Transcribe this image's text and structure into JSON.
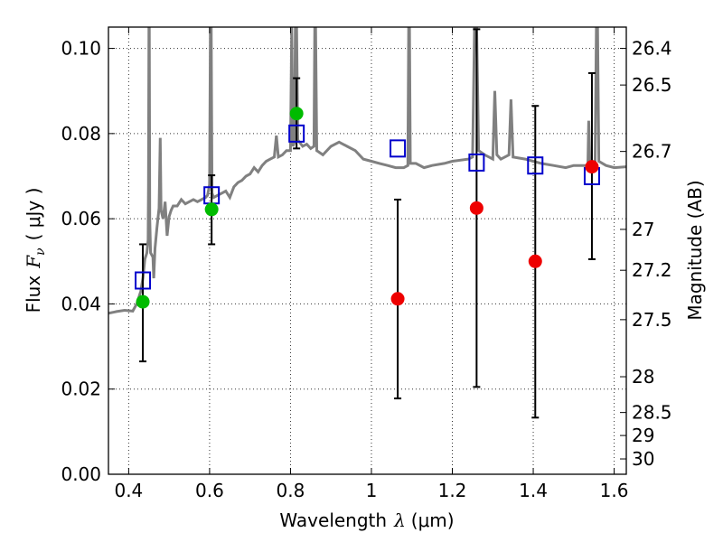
{
  "chart_data": {
    "type": "scatter",
    "xlabel": {
      "prefix": "Wavelength",
      "symbol": "λ",
      "unit": "(μm)"
    },
    "ylabel": {
      "prefix": "Flux",
      "symbol": "F",
      "subscript": "ν",
      "unit": "( μJy )"
    },
    "ylabel_right": "Magnitude (AB)",
    "xlim": [
      0.35,
      1.63
    ],
    "ylim": [
      0.0,
      0.105
    ],
    "x_ticks": [
      0.4,
      0.6,
      0.8,
      1.0,
      1.2,
      1.4,
      1.6
    ],
    "x_tick_labels": [
      "0.4",
      "0.6",
      "0.8",
      "1",
      "1.2",
      "1.4",
      "1.6"
    ],
    "y_ticks": [
      0.0,
      0.02,
      0.04,
      0.06,
      0.08,
      0.1
    ],
    "y_tick_labels": [
      "0.00",
      "0.02",
      "0.04",
      "0.06",
      "0.08",
      "0.10"
    ],
    "right_ticks": [
      {
        "label": "26.4",
        "flux": 0.1
      },
      {
        "label": "26.5",
        "flux": 0.0914
      },
      {
        "label": "26.7",
        "flux": 0.0758
      },
      {
        "label": "27",
        "flux": 0.0575
      },
      {
        "label": "27.2",
        "flux": 0.0479
      },
      {
        "label": "27.5",
        "flux": 0.0363
      },
      {
        "label": "28",
        "flux": 0.0229
      },
      {
        "label": "28.5",
        "flux": 0.0145
      },
      {
        "label": "29",
        "flux": 0.0091
      },
      {
        "label": "30",
        "flux": 0.0036
      }
    ],
    "grid": true,
    "colors": {
      "spectrum": "#808080",
      "model_box": "#0000cc",
      "optical_point": "#00bb00",
      "nir_point": "#ee0000",
      "errorbar": "#000000"
    },
    "series": [
      {
        "kind": "spectrum-line",
        "points": [
          [
            0.35,
            0.0378
          ],
          [
            0.37,
            0.0382
          ],
          [
            0.39,
            0.0385
          ],
          [
            0.41,
            0.0383
          ],
          [
            0.42,
            0.04
          ],
          [
            0.43,
            0.043
          ],
          [
            0.435,
            0.046
          ],
          [
            0.44,
            0.0505
          ],
          [
            0.445,
            0.052
          ],
          [
            0.448,
            0.055
          ],
          [
            0.449,
            0.068
          ],
          [
            0.45,
            0.105
          ],
          [
            0.451,
            0.105
          ],
          [
            0.452,
            0.06
          ],
          [
            0.454,
            0.052
          ],
          [
            0.46,
            0.051
          ],
          [
            0.462,
            0.046
          ],
          [
            0.465,
            0.053
          ],
          [
            0.47,
            0.058
          ],
          [
            0.475,
            0.0625
          ],
          [
            0.478,
            0.079
          ],
          [
            0.48,
            0.062
          ],
          [
            0.485,
            0.06
          ],
          [
            0.49,
            0.064
          ],
          [
            0.495,
            0.056
          ],
          [
            0.5,
            0.0605
          ],
          [
            0.505,
            0.062
          ],
          [
            0.51,
            0.063
          ],
          [
            0.52,
            0.063
          ],
          [
            0.53,
            0.0645
          ],
          [
            0.54,
            0.0635
          ],
          [
            0.55,
            0.064
          ],
          [
            0.56,
            0.0645
          ],
          [
            0.57,
            0.064
          ],
          [
            0.58,
            0.0645
          ],
          [
            0.59,
            0.065
          ],
          [
            0.595,
            0.0655
          ],
          [
            0.6,
            0.068
          ],
          [
            0.602,
            0.105
          ],
          [
            0.604,
            0.105
          ],
          [
            0.606,
            0.066
          ],
          [
            0.61,
            0.065
          ],
          [
            0.62,
            0.0655
          ],
          [
            0.63,
            0.066
          ],
          [
            0.64,
            0.0665
          ],
          [
            0.65,
            0.065
          ],
          [
            0.66,
            0.0675
          ],
          [
            0.67,
            0.0685
          ],
          [
            0.68,
            0.069
          ],
          [
            0.69,
            0.07
          ],
          [
            0.7,
            0.0705
          ],
          [
            0.71,
            0.072
          ],
          [
            0.72,
            0.071
          ],
          [
            0.73,
            0.0725
          ],
          [
            0.74,
            0.0735
          ],
          [
            0.75,
            0.074
          ],
          [
            0.76,
            0.0745
          ],
          [
            0.765,
            0.0795
          ],
          [
            0.77,
            0.0745
          ],
          [
            0.78,
            0.075
          ],
          [
            0.79,
            0.076
          ],
          [
            0.8,
            0.076
          ],
          [
            0.803,
            0.105
          ],
          [
            0.806,
            0.077
          ],
          [
            0.81,
            0.078
          ],
          [
            0.812,
            0.105
          ],
          [
            0.815,
            0.105
          ],
          [
            0.818,
            0.0785
          ],
          [
            0.83,
            0.077
          ],
          [
            0.84,
            0.0775
          ],
          [
            0.85,
            0.0765
          ],
          [
            0.858,
            0.077
          ],
          [
            0.86,
            0.105
          ],
          [
            0.862,
            0.105
          ],
          [
            0.865,
            0.076
          ],
          [
            0.88,
            0.075
          ],
          [
            0.9,
            0.077
          ],
          [
            0.92,
            0.078
          ],
          [
            0.94,
            0.077
          ],
          [
            0.96,
            0.076
          ],
          [
            0.98,
            0.074
          ],
          [
            1.0,
            0.0735
          ],
          [
            1.02,
            0.073
          ],
          [
            1.04,
            0.0725
          ],
          [
            1.06,
            0.072
          ],
          [
            1.08,
            0.072
          ],
          [
            1.09,
            0.0725
          ],
          [
            1.092,
            0.105
          ],
          [
            1.094,
            0.105
          ],
          [
            1.096,
            0.073
          ],
          [
            1.11,
            0.073
          ],
          [
            1.13,
            0.072
          ],
          [
            1.15,
            0.0725
          ],
          [
            1.18,
            0.073
          ],
          [
            1.2,
            0.0735
          ],
          [
            1.24,
            0.074
          ],
          [
            1.25,
            0.0745
          ],
          [
            1.255,
            0.105
          ],
          [
            1.26,
            0.105
          ],
          [
            1.265,
            0.076
          ],
          [
            1.28,
            0.075
          ],
          [
            1.3,
            0.074
          ],
          [
            1.305,
            0.09
          ],
          [
            1.31,
            0.075
          ],
          [
            1.32,
            0.074
          ],
          [
            1.33,
            0.0745
          ],
          [
            1.34,
            0.075
          ],
          [
            1.345,
            0.088
          ],
          [
            1.35,
            0.0745
          ],
          [
            1.38,
            0.074
          ],
          [
            1.4,
            0.0735
          ],
          [
            1.42,
            0.073
          ],
          [
            1.45,
            0.0725
          ],
          [
            1.48,
            0.072
          ],
          [
            1.5,
            0.0725
          ],
          [
            1.52,
            0.0725
          ],
          [
            1.535,
            0.0725
          ],
          [
            1.537,
            0.083
          ],
          [
            1.54,
            0.073
          ],
          [
            1.553,
            0.0735
          ],
          [
            1.556,
            0.105
          ],
          [
            1.559,
            0.105
          ],
          [
            1.562,
            0.0735
          ],
          [
            1.58,
            0.0725
          ],
          [
            1.6,
            0.072
          ],
          [
            1.63,
            0.0722
          ]
        ]
      },
      {
        "kind": "model-boxes",
        "x": [
          0.435,
          0.605,
          0.815,
          1.065,
          1.26,
          1.405,
          1.545
        ],
        "y": [
          0.0455,
          0.0655,
          0.08,
          0.0765,
          0.0732,
          0.0725,
          0.07
        ]
      },
      {
        "kind": "optical-points",
        "x": [
          0.435,
          0.605,
          0.815
        ],
        "y": [
          0.0405,
          0.0622,
          0.0847
        ],
        "yerr_low": [
          0.0265,
          0.054,
          0.0765
        ],
        "yerr_high": [
          0.054,
          0.0702,
          0.093
        ]
      },
      {
        "kind": "nir-points",
        "x": [
          1.065,
          1.26,
          1.405,
          1.545
        ],
        "y": [
          0.0412,
          0.0625,
          0.05,
          0.0722
        ],
        "yerr_low": [
          0.0178,
          0.0205,
          0.0133,
          0.0505
        ],
        "yerr_high": [
          0.0645,
          0.1045,
          0.0865,
          0.0942
        ]
      }
    ]
  }
}
